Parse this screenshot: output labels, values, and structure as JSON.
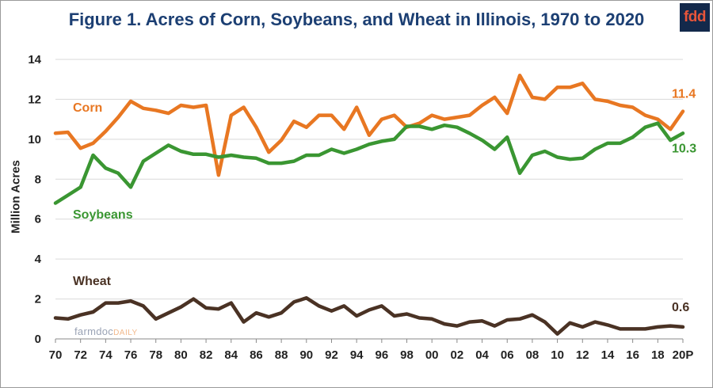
{
  "chart_data": {
    "type": "line",
    "title": "Figure 1.  Acres of Corn, Soybeans, and Wheat in Illinois, 1970 to 2020",
    "ylabel": "Million Acres",
    "xlabel": "",
    "ylim": [
      0,
      14
    ],
    "yticks": [
      "0",
      "2",
      "4",
      "6",
      "8",
      "10",
      "12",
      "14"
    ],
    "xticks": [
      "70",
      "72",
      "74",
      "76",
      "78",
      "80",
      "82",
      "84",
      "86",
      "88",
      "90",
      "92",
      "94",
      "96",
      "98",
      "00",
      "02",
      "04",
      "06",
      "08",
      "10",
      "12",
      "14",
      "16",
      "18",
      "20P"
    ],
    "grid": "horizontal",
    "x": [
      1970,
      1971,
      1972,
      1973,
      1974,
      1975,
      1976,
      1977,
      1978,
      1979,
      1980,
      1981,
      1982,
      1983,
      1984,
      1985,
      1986,
      1987,
      1988,
      1989,
      1990,
      1991,
      1992,
      1993,
      1994,
      1995,
      1996,
      1997,
      1998,
      1999,
      2000,
      2001,
      2002,
      2003,
      2004,
      2005,
      2006,
      2007,
      2008,
      2009,
      2010,
      2011,
      2012,
      2013,
      2014,
      2015,
      2016,
      2017,
      2018,
      2019,
      2020
    ],
    "series": [
      {
        "name": "Corn",
        "color": "#e87722",
        "values": [
          10.3,
          10.35,
          9.55,
          9.8,
          10.4,
          11.1,
          11.9,
          11.55,
          11.45,
          11.3,
          11.7,
          11.6,
          11.7,
          8.2,
          11.2,
          11.6,
          10.6,
          9.35,
          9.95,
          10.9,
          10.6,
          11.2,
          11.2,
          10.5,
          11.6,
          10.2,
          11.0,
          11.2,
          10.6,
          10.8,
          11.2,
          11.0,
          11.1,
          11.2,
          11.7,
          12.1,
          11.3,
          13.2,
          12.1,
          12.0,
          12.6,
          12.6,
          12.8,
          12.0,
          11.9,
          11.7,
          11.6,
          11.2,
          11.0,
          10.5,
          11.4
        ]
      },
      {
        "name": "Soybeans",
        "color": "#3a9632",
        "values": [
          6.8,
          7.2,
          7.6,
          9.2,
          8.55,
          8.3,
          7.6,
          8.9,
          9.3,
          9.7,
          9.4,
          9.25,
          9.25,
          9.1,
          9.2,
          9.1,
          9.05,
          8.8,
          8.8,
          8.9,
          9.2,
          9.2,
          9.5,
          9.3,
          9.5,
          9.75,
          9.9,
          10.0,
          10.65,
          10.65,
          10.5,
          10.7,
          10.6,
          10.3,
          9.95,
          9.5,
          10.1,
          8.3,
          9.2,
          9.4,
          9.1,
          9.0,
          9.05,
          9.5,
          9.8,
          9.8,
          10.1,
          10.6,
          10.8,
          9.95,
          10.3
        ]
      },
      {
        "name": "Wheat",
        "color": "#4a3224",
        "values": [
          1.05,
          1.0,
          1.2,
          1.35,
          1.8,
          1.8,
          1.9,
          1.65,
          1.0,
          1.3,
          1.6,
          2.0,
          1.55,
          1.5,
          1.8,
          0.85,
          1.3,
          1.1,
          1.3,
          1.85,
          2.05,
          1.65,
          1.4,
          1.65,
          1.15,
          1.45,
          1.65,
          1.15,
          1.25,
          1.05,
          1.0,
          0.75,
          0.65,
          0.85,
          0.9,
          0.65,
          0.95,
          1.0,
          1.2,
          0.85,
          0.25,
          0.8,
          0.6,
          0.85,
          0.7,
          0.5,
          0.5,
          0.5,
          0.6,
          0.65,
          0.6
        ]
      }
    ],
    "series_labels": [
      "Corn",
      "Soybeans",
      "Wheat"
    ],
    "end_labels": [
      "11.4",
      "10.3",
      "0.6"
    ]
  },
  "logo_text": "fdd",
  "watermark": {
    "main": "farmdoc",
    "sub": "DAILY"
  }
}
